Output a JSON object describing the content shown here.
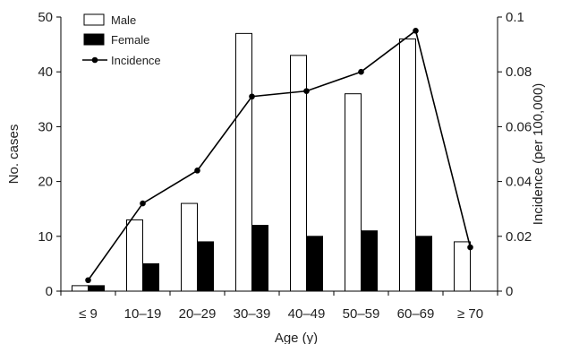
{
  "chart_data": {
    "type": "bar",
    "categories": [
      "≤ 9",
      "10–19",
      "20–29",
      "30–39",
      "40–49",
      "50–59",
      "60–69",
      "≥ 70"
    ],
    "series": [
      {
        "name": "Male",
        "type": "bar",
        "axis": "left",
        "color": "#ffffff",
        "values": [
          1,
          13,
          16,
          47,
          43,
          36,
          46,
          9
        ]
      },
      {
        "name": "Female",
        "type": "bar",
        "axis": "left",
        "color": "#000000",
        "values": [
          1,
          5,
          9,
          12,
          10,
          11,
          10,
          0
        ]
      },
      {
        "name": "Incidence",
        "type": "line",
        "axis": "right",
        "color": "#000000",
        "values": [
          0.004,
          0.032,
          0.044,
          0.071,
          0.073,
          0.08,
          0.095,
          0.016
        ]
      }
    ],
    "xlabel": "Age (y)",
    "ylabel": "No. cases",
    "y2label": "Incidence (per 100,000)",
    "ylim": [
      0,
      50
    ],
    "y2lim": [
      0,
      0.1
    ],
    "yticks": [
      "0",
      "10",
      "20",
      "30",
      "40",
      "50"
    ],
    "y2ticks": [
      "0",
      "0.02",
      "0.04",
      "0.06",
      "0.08",
      "0.1"
    ],
    "legend_position": "top-left",
    "grid": false
  }
}
